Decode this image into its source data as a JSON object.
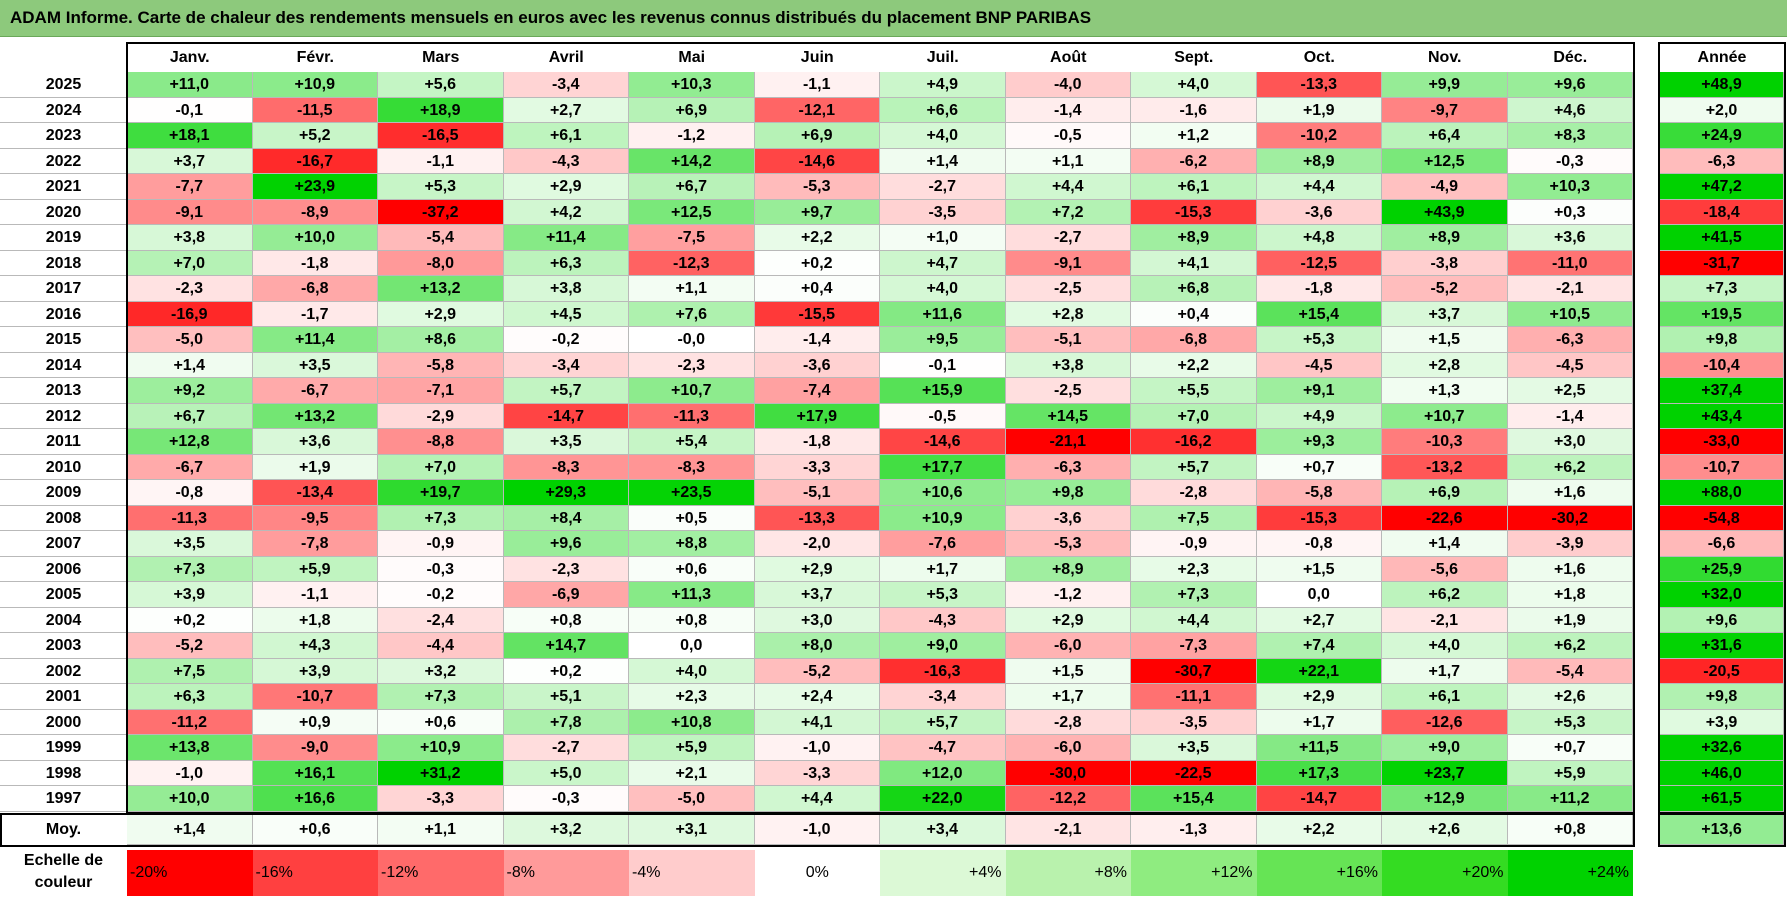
{
  "title": "ADAM Informe. Carte de chaleur des rendements mensuels en euros avec les revenus connus distribués du placement BNP PARIBAS",
  "chart_data": {
    "type": "heatmap",
    "months": [
      "Janv.",
      "Févr.",
      "Mars",
      "Avril",
      "Mai",
      "Juin",
      "Juil.",
      "Août",
      "Sept.",
      "Oct.",
      "Nov.",
      "Déc."
    ],
    "annual_header": "Année",
    "average_label": "Moy.",
    "rows": [
      {
        "year": "2025",
        "values": [
          "+11,0",
          "+10,9",
          "+5,6",
          "-3,4",
          "+10,3",
          "-1,1",
          "+4,9",
          "-4,0",
          "+4,0",
          "-13,3",
          "+9,9",
          "+9,6"
        ],
        "annual": "+48,9"
      },
      {
        "year": "2024",
        "values": [
          "-0,1",
          "-11,5",
          "+18,9",
          "+2,7",
          "+6,9",
          "-12,1",
          "+6,6",
          "-1,4",
          "-1,6",
          "+1,9",
          "-9,7",
          "+4,6"
        ],
        "annual": "+2,0"
      },
      {
        "year": "2023",
        "values": [
          "+18,1",
          "+5,2",
          "-16,5",
          "+6,1",
          "-1,2",
          "+6,9",
          "+4,0",
          "-0,5",
          "+1,2",
          "-10,2",
          "+6,4",
          "+8,3"
        ],
        "annual": "+24,9"
      },
      {
        "year": "2022",
        "values": [
          "+3,7",
          "-16,7",
          "-1,1",
          "-4,3",
          "+14,2",
          "-14,6",
          "+1,4",
          "+1,1",
          "-6,2",
          "+8,9",
          "+12,5",
          "-0,3"
        ],
        "annual": "-6,3"
      },
      {
        "year": "2021",
        "values": [
          "-7,7",
          "+23,9",
          "+5,3",
          "+2,9",
          "+6,7",
          "-5,3",
          "-2,7",
          "+4,4",
          "+6,1",
          "+4,4",
          "-4,9",
          "+10,3"
        ],
        "annual": "+47,2"
      },
      {
        "year": "2020",
        "values": [
          "-9,1",
          "-8,9",
          "-37,2",
          "+4,2",
          "+12,5",
          "+9,7",
          "-3,5",
          "+7,2",
          "-15,3",
          "-3,6",
          "+43,9",
          "+0,3"
        ],
        "annual": "-18,4"
      },
      {
        "year": "2019",
        "values": [
          "+3,8",
          "+10,0",
          "-5,4",
          "+11,4",
          "-7,5",
          "+2,2",
          "+1,0",
          "-2,7",
          "+8,9",
          "+4,8",
          "+8,9",
          "+3,6"
        ],
        "annual": "+41,5"
      },
      {
        "year": "2018",
        "values": [
          "+7,0",
          "-1,8",
          "-8,0",
          "+6,3",
          "-12,3",
          "+0,2",
          "+4,7",
          "-9,1",
          "+4,1",
          "-12,5",
          "-3,8",
          "-11,0"
        ],
        "annual": "-31,7"
      },
      {
        "year": "2017",
        "values": [
          "-2,3",
          "-6,8",
          "+13,2",
          "+3,8",
          "+1,1",
          "+0,4",
          "+4,0",
          "-2,5",
          "+6,8",
          "-1,8",
          "-5,2",
          "-2,1"
        ],
        "annual": "+7,3"
      },
      {
        "year": "2016",
        "values": [
          "-16,9",
          "-1,7",
          "+2,9",
          "+4,5",
          "+7,6",
          "-15,5",
          "+11,6",
          "+2,8",
          "+0,4",
          "+15,4",
          "+3,7",
          "+10,5"
        ],
        "annual": "+19,5"
      },
      {
        "year": "2015",
        "values": [
          "-5,0",
          "+11,4",
          "+8,6",
          "-0,2",
          "-0,0",
          "-1,4",
          "+9,5",
          "-5,1",
          "-6,8",
          "+5,3",
          "+1,5",
          "-6,3"
        ],
        "annual": "+9,8"
      },
      {
        "year": "2014",
        "values": [
          "+1,4",
          "+3,5",
          "-5,8",
          "-3,4",
          "-2,3",
          "-3,6",
          "-0,1",
          "+3,8",
          "+2,2",
          "-4,5",
          "+2,8",
          "-4,5"
        ],
        "annual": "-10,4"
      },
      {
        "year": "2013",
        "values": [
          "+9,2",
          "-6,7",
          "-7,1",
          "+5,7",
          "+10,7",
          "-7,4",
          "+15,9",
          "-2,5",
          "+5,5",
          "+9,1",
          "+1,3",
          "+2,5"
        ],
        "annual": "+37,4"
      },
      {
        "year": "2012",
        "values": [
          "+6,7",
          "+13,2",
          "-2,9",
          "-14,7",
          "-11,3",
          "+17,9",
          "-0,5",
          "+14,5",
          "+7,0",
          "+4,9",
          "+10,7",
          "-1,4"
        ],
        "annual": "+43,4"
      },
      {
        "year": "2011",
        "values": [
          "+12,8",
          "+3,6",
          "-8,8",
          "+3,5",
          "+5,4",
          "-1,8",
          "-14,6",
          "-21,1",
          "-16,2",
          "+9,3",
          "-10,3",
          "+3,0"
        ],
        "annual": "-33,0"
      },
      {
        "year": "2010",
        "values": [
          "-6,7",
          "+1,9",
          "+7,0",
          "-8,3",
          "-8,3",
          "-3,3",
          "+17,7",
          "-6,3",
          "+5,7",
          "+0,7",
          "-13,2",
          "+6,2"
        ],
        "annual": "-10,7"
      },
      {
        "year": "2009",
        "values": [
          "-0,8",
          "-13,4",
          "+19,7",
          "+29,3",
          "+23,5",
          "-5,1",
          "+10,6",
          "+9,8",
          "-2,8",
          "-5,8",
          "+6,9",
          "+1,6"
        ],
        "annual": "+88,0"
      },
      {
        "year": "2008",
        "values": [
          "-11,3",
          "-9,5",
          "+7,3",
          "+8,4",
          "+0,5",
          "-13,3",
          "+10,9",
          "-3,6",
          "+7,5",
          "-15,3",
          "-22,6",
          "-30,2"
        ],
        "annual": "-54,8"
      },
      {
        "year": "2007",
        "values": [
          "+3,5",
          "-7,8",
          "-0,9",
          "+9,6",
          "+8,8",
          "-2,0",
          "-7,6",
          "-5,3",
          "-0,9",
          "-0,8",
          "+1,4",
          "-3,9"
        ],
        "annual": "-6,6"
      },
      {
        "year": "2006",
        "values": [
          "+7,3",
          "+5,9",
          "-0,3",
          "-2,3",
          "+0,6",
          "+2,9",
          "+1,7",
          "+8,9",
          "+2,3",
          "+1,5",
          "-5,6",
          "+1,6"
        ],
        "annual": "+25,9"
      },
      {
        "year": "2005",
        "values": [
          "+3,9",
          "-1,1",
          "-0,2",
          "-6,9",
          "+11,3",
          "+3,7",
          "+5,3",
          "-1,2",
          "+7,3",
          "0,0",
          "+6,2",
          "+1,8"
        ],
        "annual": "+32,0"
      },
      {
        "year": "2004",
        "values": [
          "+0,2",
          "+1,8",
          "-2,4",
          "+0,8",
          "+0,8",
          "+3,0",
          "-4,3",
          "+2,9",
          "+4,4",
          "+2,7",
          "-2,1",
          "+1,9"
        ],
        "annual": "+9,6"
      },
      {
        "year": "2003",
        "values": [
          "-5,2",
          "+4,3",
          "-4,4",
          "+14,7",
          "0,0",
          "+8,0",
          "+9,0",
          "-6,0",
          "-7,3",
          "+7,4",
          "+4,0",
          "+6,2"
        ],
        "annual": "+31,6"
      },
      {
        "year": "2002",
        "values": [
          "+7,5",
          "+3,9",
          "+3,2",
          "+0,2",
          "+4,0",
          "-5,2",
          "-16,3",
          "+1,5",
          "-30,7",
          "+22,1",
          "+1,7",
          "-5,4"
        ],
        "annual": "-20,5"
      },
      {
        "year": "2001",
        "values": [
          "+6,3",
          "-10,7",
          "+7,3",
          "+5,1",
          "+2,3",
          "+2,4",
          "-3,4",
          "+1,7",
          "-11,1",
          "+2,9",
          "+6,1",
          "+2,6"
        ],
        "annual": "+9,8"
      },
      {
        "year": "2000",
        "values": [
          "-11,2",
          "+0,9",
          "+0,6",
          "+7,8",
          "+10,8",
          "+4,1",
          "+5,7",
          "-2,8",
          "-3,5",
          "+1,7",
          "-12,6",
          "+5,3"
        ],
        "annual": "+3,9"
      },
      {
        "year": "1999",
        "values": [
          "+13,8",
          "-9,0",
          "+10,9",
          "-2,7",
          "+5,9",
          "-1,0",
          "-4,7",
          "-6,0",
          "+3,5",
          "+11,5",
          "+9,0",
          "+0,7"
        ],
        "annual": "+32,6"
      },
      {
        "year": "1998",
        "values": [
          "-1,0",
          "+16,1",
          "+31,2",
          "+5,0",
          "+2,1",
          "-3,3",
          "+12,0",
          "-30,0",
          "-22,5",
          "+17,3",
          "+23,7",
          "+5,9"
        ],
        "annual": "+46,0"
      },
      {
        "year": "1997",
        "values": [
          "+10,0",
          "+16,6",
          "-3,3",
          "-0,3",
          "-5,0",
          "+4,4",
          "+22,0",
          "-12,2",
          "+15,4",
          "-14,7",
          "+12,9",
          "+11,2"
        ],
        "annual": "+61,5"
      }
    ],
    "average": {
      "values": [
        "+1,4",
        "+0,6",
        "+1,1",
        "+3,2",
        "+3,1",
        "-1,0",
        "+3,4",
        "-2,1",
        "-1,3",
        "+2,2",
        "+2,6",
        "+0,8"
      ],
      "annual": "+13,6"
    },
    "color_scale": {
      "label": "Echelle de couleur",
      "stops": [
        {
          "text": "-20%",
          "color": "#ff0000"
        },
        {
          "text": "-16%",
          "color": "#ff4040"
        },
        {
          "text": "-12%",
          "color": "#ff6a6a"
        },
        {
          "text": "-8%",
          "color": "#ff9a9a"
        },
        {
          "text": "-4%",
          "color": "#ffcccc"
        },
        {
          "text": "0%",
          "color": "#ffffff"
        },
        {
          "text": "+4%",
          "color": "#dcf9d6"
        },
        {
          "text": "+8%",
          "color": "#b9f2ad"
        },
        {
          "text": "+12%",
          "color": "#8fec80"
        },
        {
          "text": "+16%",
          "color": "#66e455"
        },
        {
          "text": "+20%",
          "color": "#34dc22"
        },
        {
          "text": "+24%",
          "color": "#00d200"
        }
      ]
    },
    "colors": {
      "title_bar": "#8dc97c",
      "max_red": "#ff0000",
      "max_green": "#00d200",
      "white": "#ffffff"
    }
  }
}
